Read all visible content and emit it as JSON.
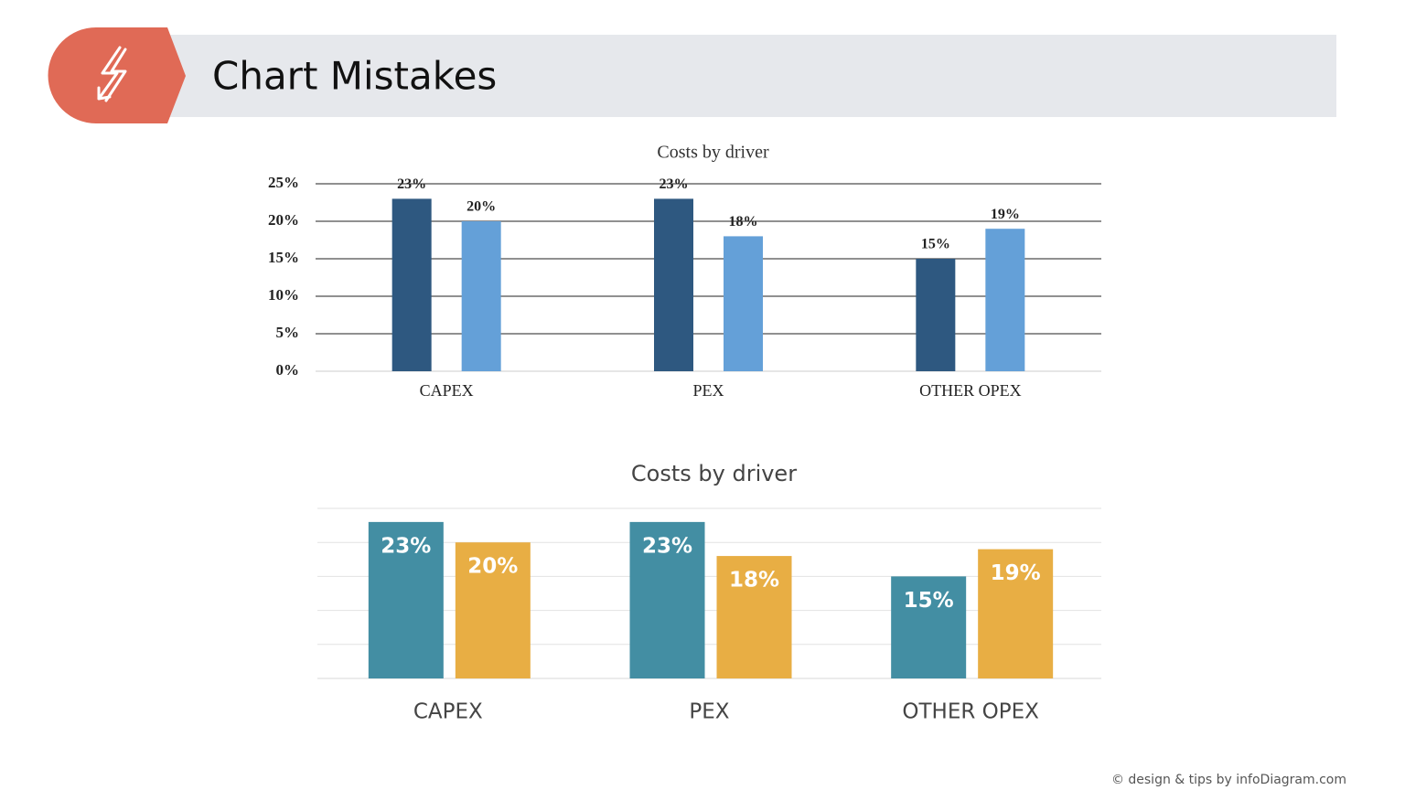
{
  "header": {
    "title": "Chart Mistakes"
  },
  "footer": "© design & tips by infoDiagram.com",
  "chart_data": [
    {
      "type": "bar",
      "title": "Costs by driver",
      "categories": [
        "CAPEX",
        "PEX",
        "OTHER OPEX"
      ],
      "series": [
        {
          "color": "#2e5880",
          "values": [
            23,
            23,
            15
          ],
          "value_labels": [
            "23%",
            "23%",
            "15%"
          ]
        },
        {
          "color": "#64a0d8",
          "values": [
            20,
            18,
            19
          ],
          "value_labels": [
            "20%",
            "18%",
            "19%"
          ]
        }
      ],
      "ylim": [
        0,
        25
      ],
      "yticks": [
        {
          "value": 0,
          "label": "0%"
        },
        {
          "value": 5,
          "label": "5%"
        },
        {
          "value": 10,
          "label": "10%"
        },
        {
          "value": 15,
          "label": "15%"
        },
        {
          "value": 20,
          "label": "20%"
        },
        {
          "value": 25,
          "label": "25%"
        }
      ],
      "grid": true,
      "y_tick_labels": true
    },
    {
      "type": "bar",
      "title": "Costs by driver",
      "categories": [
        "CAPEX",
        "PEX",
        "OTHER OPEX"
      ],
      "series": [
        {
          "color": "#438ea3",
          "values": [
            23,
            23,
            15
          ],
          "value_labels": [
            "23%",
            "23%",
            "15%"
          ]
        },
        {
          "color": "#e8ae44",
          "values": [
            20,
            18,
            19
          ],
          "value_labels": [
            "20%",
            "18%",
            "19%"
          ]
        }
      ],
      "ylim": [
        0,
        25
      ],
      "yticks": [
        0,
        5,
        10,
        15,
        20,
        25
      ],
      "grid": true,
      "y_tick_labels": false
    }
  ]
}
